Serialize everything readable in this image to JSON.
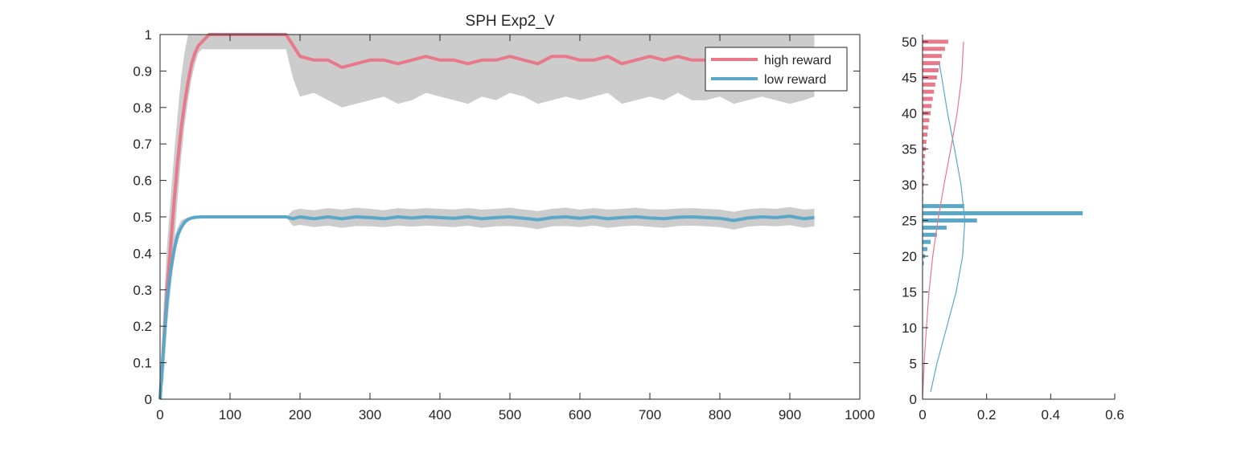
{
  "chart_data": [
    {
      "type": "line",
      "title": "SPH  Exp2_V",
      "xlabel": "",
      "ylabel": "",
      "xlim": [
        0,
        1000
      ],
      "ylim": [
        0,
        1
      ],
      "xticks": [
        "0",
        "100",
        "200",
        "300",
        "400",
        "500",
        "600",
        "700",
        "800",
        "900",
        "1000"
      ],
      "yticks": [
        "0",
        "0.1",
        "0.2",
        "0.3",
        "0.4",
        "0.5",
        "0.6",
        "0.7",
        "0.8",
        "0.9",
        "1"
      ],
      "grid": false,
      "legend_position": "top-right",
      "shading": "grey band around each series",
      "series": [
        {
          "name": "high reward",
          "color": "#e8798a",
          "x": [
            0,
            5,
            10,
            15,
            20,
            25,
            30,
            35,
            40,
            45,
            50,
            55,
            60,
            65,
            70,
            100,
            150,
            180,
            190,
            200,
            220,
            240,
            260,
            280,
            300,
            320,
            340,
            360,
            380,
            400,
            420,
            440,
            460,
            480,
            500,
            520,
            540,
            560,
            580,
            600,
            620,
            640,
            660,
            680,
            700,
            720,
            740,
            760,
            780,
            800,
            820,
            840,
            860,
            880,
            900,
            920,
            935
          ],
          "y": [
            0,
            0.15,
            0.3,
            0.42,
            0.54,
            0.65,
            0.74,
            0.81,
            0.87,
            0.92,
            0.95,
            0.97,
            0.98,
            0.99,
            1.0,
            1.0,
            1.0,
            1.0,
            0.97,
            0.94,
            0.93,
            0.93,
            0.91,
            0.92,
            0.93,
            0.93,
            0.92,
            0.93,
            0.94,
            0.93,
            0.93,
            0.92,
            0.93,
            0.93,
            0.94,
            0.93,
            0.92,
            0.94,
            0.94,
            0.93,
            0.93,
            0.94,
            0.92,
            0.93,
            0.94,
            0.93,
            0.94,
            0.93,
            0.93,
            0.94,
            0.93,
            0.93,
            0.94,
            0.93,
            0.93,
            0.93,
            0.93
          ],
          "band_lower": [
            0,
            0.05,
            0.2,
            0.3,
            0.42,
            0.55,
            0.66,
            0.75,
            0.82,
            0.88,
            0.92,
            0.95,
            0.96,
            0.96,
            0.96,
            0.96,
            0.96,
            0.96,
            0.88,
            0.83,
            0.84,
            0.82,
            0.8,
            0.81,
            0.82,
            0.83,
            0.81,
            0.82,
            0.84,
            0.83,
            0.82,
            0.81,
            0.83,
            0.82,
            0.84,
            0.83,
            0.81,
            0.82,
            0.83,
            0.82,
            0.83,
            0.84,
            0.81,
            0.82,
            0.83,
            0.82,
            0.84,
            0.82,
            0.82,
            0.83,
            0.81,
            0.82,
            0.83,
            0.82,
            0.81,
            0.82,
            0.83
          ],
          "band_upper": [
            0,
            0.25,
            0.42,
            0.55,
            0.67,
            0.78,
            0.88,
            0.95,
            1.0,
            1.0,
            1.0,
            1.0,
            1.0,
            1.0,
            1.0,
            1.0,
            1.0,
            1.0,
            1.0,
            1.0,
            1.0,
            1.0,
            1.0,
            1.0,
            1.0,
            1.0,
            1.0,
            1.0,
            1.0,
            1.0,
            1.0,
            1.0,
            1.0,
            1.0,
            1.0,
            1.0,
            1.0,
            1.0,
            1.0,
            1.0,
            1.0,
            1.0,
            1.0,
            1.0,
            1.0,
            1.0,
            1.0,
            1.0,
            1.0,
            1.0,
            1.0,
            1.0,
            1.0,
            1.0,
            1.0,
            1.0,
            1.0
          ]
        },
        {
          "name": "low reward",
          "color": "#5aa7c8",
          "x": [
            0,
            5,
            10,
            15,
            20,
            25,
            30,
            35,
            40,
            45,
            50,
            60,
            70,
            100,
            150,
            180,
            190,
            200,
            220,
            240,
            260,
            280,
            300,
            320,
            340,
            360,
            380,
            400,
            420,
            440,
            460,
            480,
            500,
            520,
            540,
            560,
            580,
            600,
            620,
            640,
            660,
            680,
            700,
            720,
            740,
            760,
            780,
            800,
            820,
            840,
            860,
            880,
            900,
            920,
            935
          ],
          "y": [
            0,
            0.14,
            0.27,
            0.35,
            0.41,
            0.45,
            0.47,
            0.485,
            0.493,
            0.497,
            0.499,
            0.5,
            0.5,
            0.5,
            0.5,
            0.5,
            0.495,
            0.5,
            0.495,
            0.5,
            0.495,
            0.5,
            0.498,
            0.495,
            0.5,
            0.497,
            0.5,
            0.498,
            0.496,
            0.5,
            0.495,
            0.498,
            0.5,
            0.496,
            0.492,
            0.498,
            0.5,
            0.496,
            0.5,
            0.495,
            0.498,
            0.5,
            0.497,
            0.495,
            0.499,
            0.5,
            0.498,
            0.496,
            0.49,
            0.497,
            0.5,
            0.498,
            0.502,
            0.495,
            0.498
          ],
          "band_lower": [
            0,
            0.1,
            0.22,
            0.31,
            0.38,
            0.43,
            0.46,
            0.48,
            0.49,
            0.495,
            0.498,
            0.5,
            0.5,
            0.5,
            0.5,
            0.5,
            0.475,
            0.478,
            0.472,
            0.476,
            0.47,
            0.475,
            0.474,
            0.472,
            0.476,
            0.473,
            0.476,
            0.474,
            0.472,
            0.476,
            0.47,
            0.474,
            0.475,
            0.472,
            0.466,
            0.474,
            0.475,
            0.472,
            0.476,
            0.47,
            0.474,
            0.476,
            0.473,
            0.47,
            0.475,
            0.476,
            0.474,
            0.472,
            0.465,
            0.473,
            0.476,
            0.474,
            0.477,
            0.47,
            0.474
          ],
          "band_upper": [
            0,
            0.18,
            0.32,
            0.39,
            0.44,
            0.47,
            0.49,
            0.495,
            0.498,
            0.5,
            0.5,
            0.5,
            0.5,
            0.5,
            0.5,
            0.5,
            0.518,
            0.522,
            0.518,
            0.524,
            0.52,
            0.525,
            0.522,
            0.518,
            0.524,
            0.521,
            0.524,
            0.522,
            0.52,
            0.524,
            0.52,
            0.522,
            0.525,
            0.52,
            0.516,
            0.522,
            0.525,
            0.52,
            0.524,
            0.52,
            0.522,
            0.525,
            0.521,
            0.52,
            0.523,
            0.524,
            0.522,
            0.52,
            0.514,
            0.521,
            0.524,
            0.522,
            0.527,
            0.52,
            0.522
          ]
        }
      ]
    },
    {
      "type": "bar",
      "orientation": "horizontal",
      "title": "",
      "xlabel": "",
      "ylabel": "",
      "xlim": [
        0,
        0.6
      ],
      "ylim": [
        0,
        51
      ],
      "xticks": [
        "0",
        "0.2",
        "0.4",
        "0.6"
      ],
      "yticks": [
        "0",
        "5",
        "10",
        "15",
        "20",
        "25",
        "30",
        "35",
        "40",
        "45",
        "50"
      ],
      "grid": false,
      "series": [
        {
          "color": "#e8798a",
          "categories": [
            50,
            49,
            48,
            47,
            46,
            45,
            44,
            43,
            42,
            41,
            40,
            39,
            38,
            37,
            36,
            35,
            34,
            33,
            32,
            31,
            30,
            29,
            28
          ],
          "values": [
            0.08,
            0.07,
            0.06,
            0.055,
            0.05,
            0.045,
            0.04,
            0.036,
            0.032,
            0.028,
            0.025,
            0.021,
            0.018,
            0.015,
            0.012,
            0.01,
            0.008,
            0.007,
            0.006,
            0.005,
            0.004,
            0.003,
            0.002
          ]
        },
        {
          "color": "#5aa7c8",
          "categories": [
            27,
            26,
            25,
            24,
            23,
            22,
            21,
            20,
            19
          ],
          "values": [
            0.13,
            0.5,
            0.17,
            0.075,
            0.045,
            0.025,
            0.015,
            0.008,
            0.004
          ]
        }
      ],
      "density_curves": [
        {
          "color": "#e8798a",
          "y": [
            0,
            5,
            10,
            15,
            20,
            25,
            30,
            35,
            40,
            45,
            50
          ],
          "values": [
            0.0,
            0.005,
            0.012,
            0.02,
            0.032,
            0.048,
            0.067,
            0.088,
            0.108,
            0.122,
            0.128
          ]
        },
        {
          "color": "#5aa7c8",
          "y": [
            1,
            5,
            10,
            15,
            20,
            25,
            30,
            35,
            40,
            45,
            47
          ],
          "values": [
            0.025,
            0.045,
            0.075,
            0.105,
            0.125,
            0.132,
            0.12,
            0.1,
            0.078,
            0.06,
            0.052
          ]
        }
      ]
    }
  ],
  "legend": {
    "items": [
      {
        "name": "high reward",
        "color": "#e8798a"
      },
      {
        "name": "low reward",
        "color": "#5aa7c8"
      }
    ]
  }
}
